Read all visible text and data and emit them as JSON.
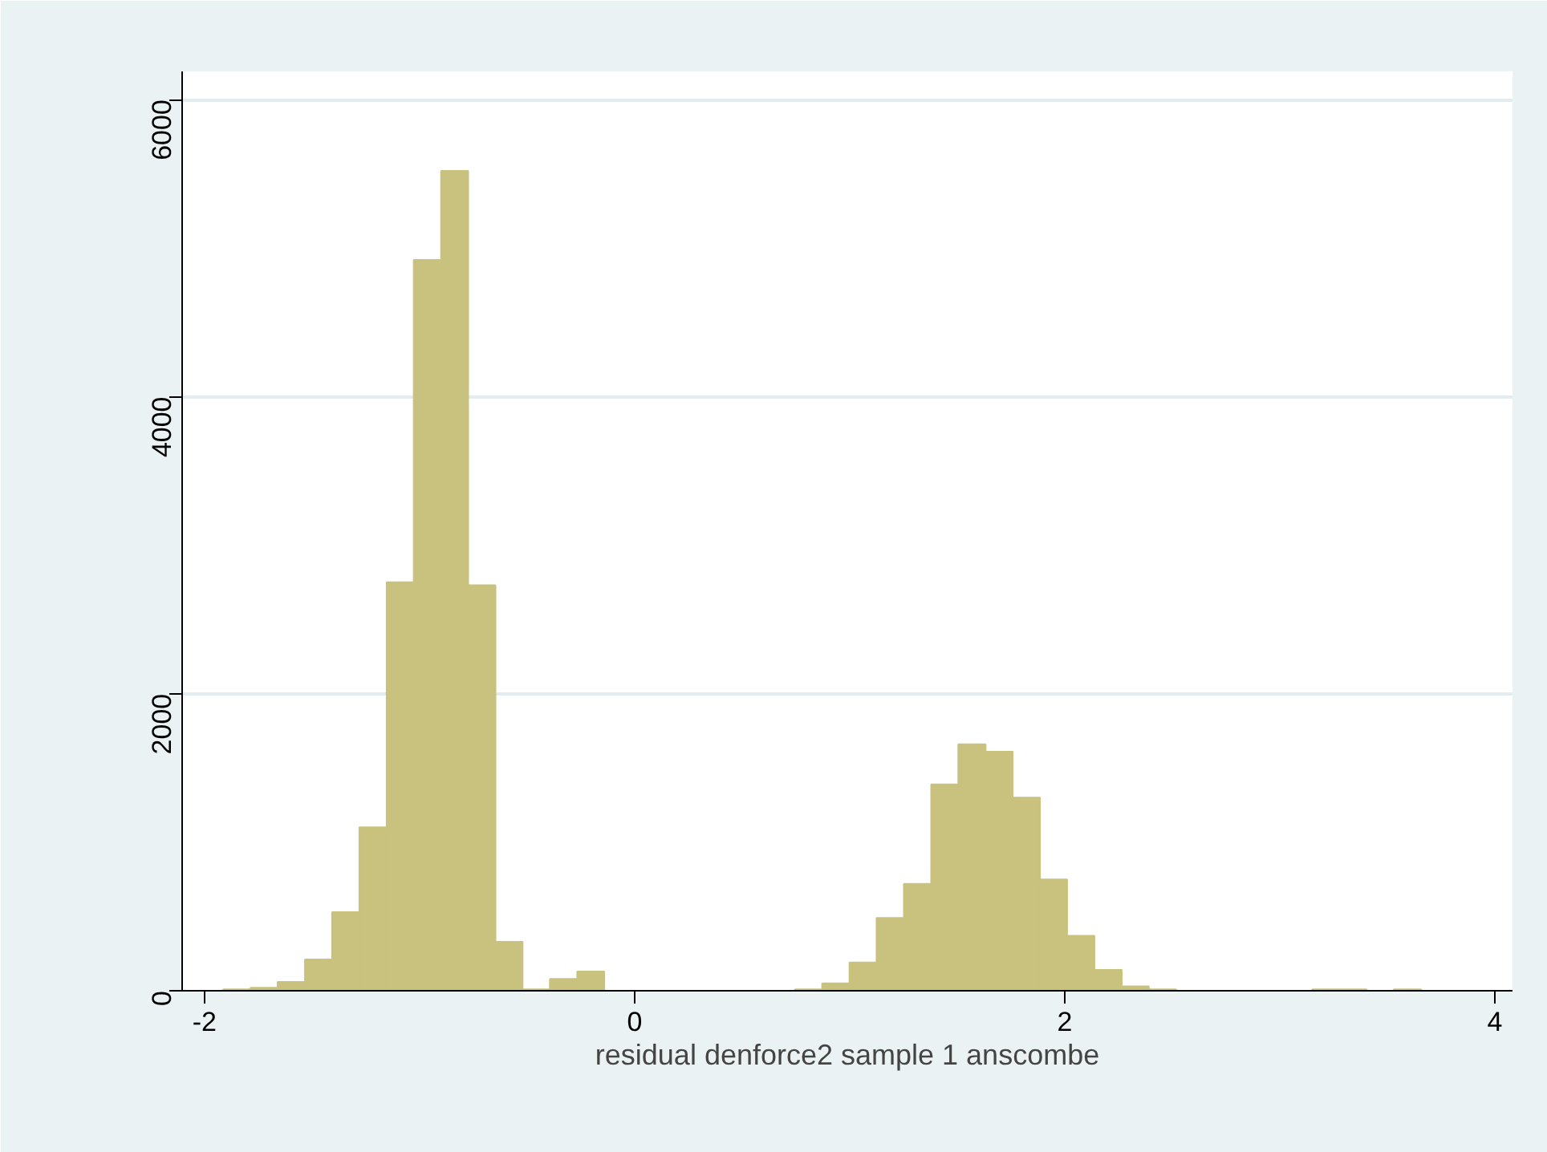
{
  "chart_data": {
    "type": "histogram",
    "xlabel": "residual denforce2 sample 1 anscombe",
    "bins": [
      -1.913,
      -1.786,
      -1.66,
      -1.533,
      -1.407,
      -1.28,
      -1.153,
      -1.027,
      -0.9,
      -0.774,
      -0.647,
      -0.521,
      -0.394,
      -0.267,
      -0.141,
      -0.014,
      0.113,
      0.239,
      0.366,
      0.492,
      0.619,
      0.746,
      0.872,
      0.999,
      1.125,
      1.252,
      1.379,
      1.505,
      1.632,
      1.758,
      1.885,
      2.011,
      2.138,
      2.265,
      2.391,
      2.518,
      2.644,
      2.771,
      2.898,
      3.024,
      3.151,
      3.277,
      3.404,
      3.53,
      3.657
    ],
    "values": [
      10,
      20,
      60,
      210,
      530,
      1100,
      2750,
      4920,
      5520,
      2730,
      330,
      10,
      80,
      130,
      0,
      0,
      0,
      0,
      0,
      0,
      0,
      10,
      50,
      190,
      490,
      720,
      1390,
      1660,
      1610,
      1300,
      750,
      370,
      140,
      30,
      10,
      0,
      0,
      0,
      0,
      0,
      10,
      10,
      0,
      10
    ],
    "color": "#c9c27e",
    "xlim": [
      -2.104,
      4.082
    ],
    "ylim": [
      0,
      6190
    ],
    "xticks": [
      -2,
      0,
      2,
      4
    ],
    "yticks": [
      0,
      2000,
      4000,
      6000
    ],
    "grid": "y"
  }
}
